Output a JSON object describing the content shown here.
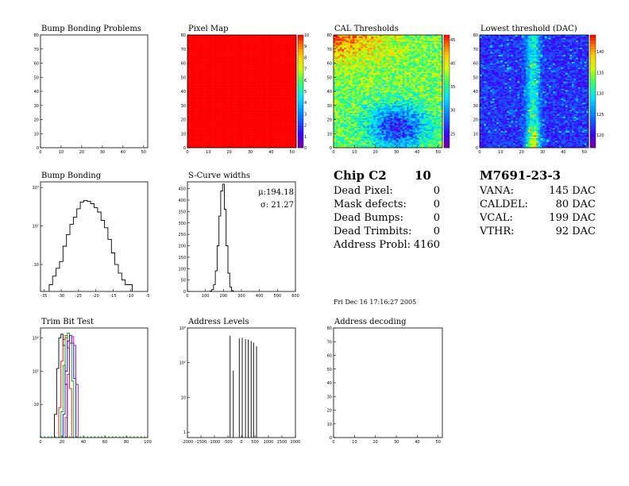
{
  "panels": [
    {
      "title": "Bump Bonding Problems",
      "type": "empty2d",
      "xticks": [
        0,
        10,
        20,
        30,
        40,
        50
      ],
      "yticks": [
        0,
        10,
        20,
        30,
        40,
        50,
        60,
        70,
        80
      ],
      "xlim": [
        0,
        52
      ],
      "ylim": [
        0,
        80
      ]
    },
    {
      "title": "Pixel Map",
      "type": "heat",
      "variant": "flat",
      "xticks": [
        0,
        10,
        20,
        30,
        40,
        50
      ],
      "yticks": [
        0,
        10,
        20,
        30,
        40,
        50,
        60,
        70,
        80
      ],
      "xlim": [
        0,
        52
      ],
      "ylim": [
        0,
        80
      ],
      "zticks": [
        0,
        1,
        2,
        3,
        4,
        5,
        6,
        7,
        8,
        9,
        10
      ],
      "zlim": [
        0,
        10
      ]
    },
    {
      "title": "CAL Thresholds",
      "type": "heat",
      "variant": "cal",
      "xticks": [
        0,
        10,
        20,
        30,
        40,
        50
      ],
      "yticks": [
        0,
        10,
        20,
        30,
        40,
        50,
        60,
        70,
        80
      ],
      "xlim": [
        0,
        52
      ],
      "ylim": [
        0,
        80
      ],
      "zticks": [
        25,
        30,
        35,
        40,
        45
      ],
      "zlim": [
        22,
        46
      ]
    },
    {
      "title": "Lowest threshold (DAC)",
      "type": "heat",
      "variant": "low",
      "xticks": [
        0,
        10,
        20,
        30,
        40,
        50
      ],
      "yticks": [
        0,
        10,
        20,
        30,
        40,
        50,
        60,
        70,
        80
      ],
      "xlim": [
        0,
        52
      ],
      "ylim": [
        0,
        80
      ],
      "zticks": [
        120,
        125,
        130,
        135,
        140
      ],
      "zlim": [
        117,
        144
      ]
    },
    {
      "title": "Bump Bonding",
      "type": "hist",
      "logy": true,
      "xticks": [
        -35,
        -30,
        -25,
        -20,
        -15,
        -10,
        -5
      ],
      "xlim": [
        -36,
        -5
      ],
      "yticks": [
        10,
        100,
        1000
      ],
      "yticklabels": [
        "10",
        "10²",
        "10³"
      ],
      "ylim": [
        2,
        1400
      ],
      "x": [
        -33,
        -32,
        -31,
        -30,
        -29,
        -28,
        -27,
        -26,
        -25,
        -24,
        -23,
        -22,
        -21,
        -20,
        -19,
        -18,
        -17,
        -16,
        -15,
        -14,
        -13,
        -12,
        -11,
        -10
      ],
      "y": [
        3,
        5,
        8,
        12,
        30,
        60,
        110,
        170,
        280,
        420,
        460,
        440,
        380,
        300,
        230,
        140,
        90,
        45,
        20,
        10,
        6,
        4,
        3,
        3
      ]
    },
    {
      "title": "S-Curve widths",
      "type": "hist",
      "logy": false,
      "xticks": [
        0,
        100,
        200,
        300,
        400,
        500,
        600
      ],
      "xlim": [
        0,
        600
      ],
      "yticks": [
        0,
        50,
        100,
        150,
        200,
        250,
        300,
        350,
        400,
        450
      ],
      "ylim": [
        0,
        480
      ],
      "x": [
        130,
        140,
        150,
        160,
        170,
        180,
        190,
        200,
        210,
        220,
        230,
        240,
        250
      ],
      "y": [
        2,
        8,
        30,
        90,
        200,
        330,
        440,
        470,
        360,
        200,
        80,
        20,
        4
      ],
      "stats": [
        "μ:194.18",
        "σ: 21.27"
      ]
    },
    {
      "title": "Trim Bit Test",
      "type": "multihist",
      "logy": true,
      "xticks": [
        0,
        20,
        40,
        60,
        80,
        100
      ],
      "xlim": [
        0,
        100
      ],
      "yticks": [
        10,
        100,
        1000
      ],
      "yticklabels": [
        "10",
        "10²",
        "10³"
      ],
      "ylim": [
        1,
        2000
      ],
      "series": [
        {
          "color": "#000000",
          "x": [
            14,
            16,
            18,
            20,
            22,
            24
          ],
          "y": [
            5,
            120,
            1000,
            1300,
            600,
            40
          ]
        },
        {
          "color": "#ff0000",
          "x": [
            18,
            20,
            22,
            24,
            26,
            28
          ],
          "y": [
            8,
            200,
            900,
            1200,
            500,
            30
          ]
        },
        {
          "color": "#00aa00",
          "x": [
            20,
            22,
            24,
            26,
            28,
            30
          ],
          "y": [
            6,
            150,
            1000,
            1400,
            700,
            50
          ]
        },
        {
          "color": "#0000ff",
          "x": [
            22,
            24,
            26,
            28,
            30,
            32
          ],
          "y": [
            5,
            100,
            800,
            1200,
            700,
            60
          ]
        },
        {
          "color": "#b000b0",
          "x": [
            24,
            26,
            28,
            30,
            32,
            34
          ],
          "y": [
            4,
            80,
            700,
            1100,
            600,
            40
          ]
        }
      ]
    },
    {
      "title": "Address Levels",
      "type": "spikes",
      "logy": true,
      "xticks": [
        -2000,
        -1500,
        -1000,
        -500,
        0,
        500,
        1000,
        1500,
        2000
      ],
      "xlim": [
        -2000,
        2000
      ],
      "yticks": [
        1,
        10,
        100,
        1000
      ],
      "yticklabels": [
        "1",
        "10",
        "10²",
        "10³"
      ],
      "ylim": [
        0.7,
        1000
      ],
      "x": [
        -420,
        -300,
        -80,
        30,
        150,
        250,
        360,
        450,
        560
      ],
      "y": [
        600,
        60,
        500,
        520,
        480,
        460,
        420,
        380,
        300
      ]
    },
    {
      "title": "Address decoding",
      "type": "empty2d",
      "xticks": [
        0,
        10,
        20,
        30,
        40,
        50
      ],
      "yticks": [
        0,
        10,
        20,
        30,
        40,
        50,
        60,
        70,
        80
      ],
      "xlim": [
        0,
        52
      ],
      "ylim": [
        0,
        80
      ]
    }
  ],
  "chip": {
    "title": "Chip C2",
    "number": "10",
    "rows": [
      {
        "label": "Dead Pixel:",
        "value": "0"
      },
      {
        "label": "Mask defects:",
        "value": "0"
      },
      {
        "label": "Dead Bumps:",
        "value": "0"
      },
      {
        "label": "Dead Trimbits:",
        "value": "0"
      },
      {
        "label": "Address Probl:",
        "value": "4160"
      }
    ]
  },
  "module": {
    "title": "M7691-23-3",
    "rows": [
      {
        "label": "VANA:",
        "value": "145 DAC"
      },
      {
        "label": "CALDEL:",
        "value": "80 DAC"
      },
      {
        "label": "VCAL:",
        "value": "199 DAC"
      },
      {
        "label": "VTHR:",
        "value": "92 DAC"
      }
    ]
  },
  "timestamp": "Fri Dec 16 17:16:27 2005"
}
